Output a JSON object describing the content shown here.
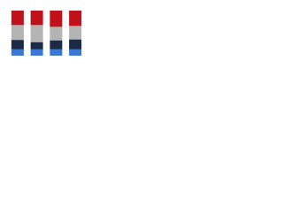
{
  "chart_data": {
    "type": "stacked_bar",
    "categories": [
      null,
      null,
      null,
      null
    ],
    "ylim": [
      0,
      100
    ],
    "series": [
      {
        "color": "#3a78d8",
        "values": [
          14,
          14,
          14,
          14
        ]
      },
      {
        "color": "#1b2b45",
        "values": [
          21,
          16,
          20,
          22
        ]
      },
      {
        "color": "#b4b4b4",
        "values": [
          33,
          38,
          30,
          30
        ]
      },
      {
        "color": "#c0111a",
        "values": [
          32,
          32,
          36,
          34
        ]
      }
    ]
  }
}
